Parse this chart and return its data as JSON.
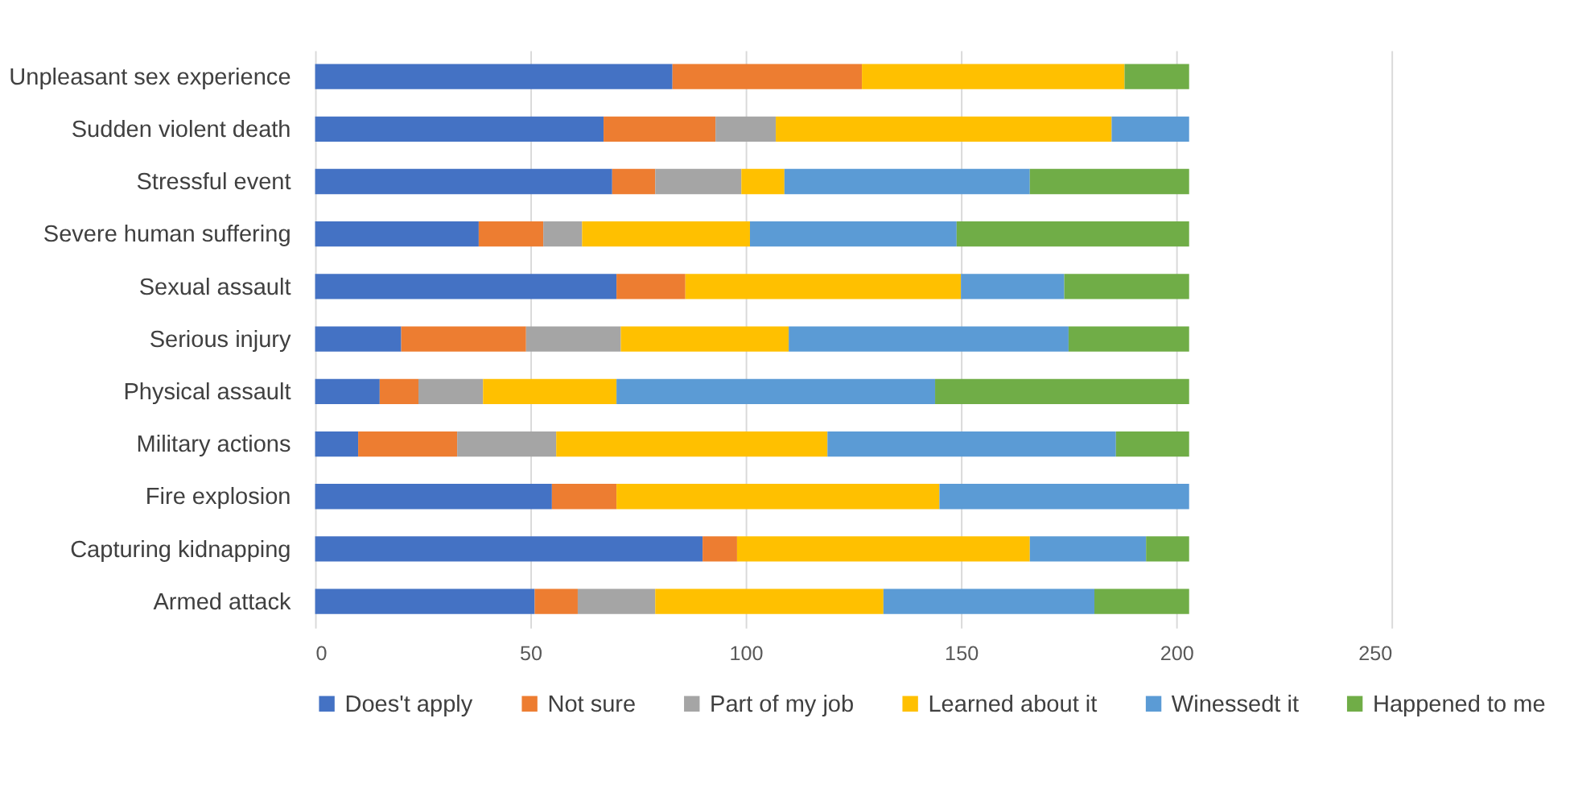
{
  "chart_data": {
    "type": "bar",
    "orientation": "horizontal",
    "stacked": true,
    "categories": [
      "Unpleasant sex experience",
      "Sudden violent death",
      "Stressful event",
      "Severe human suffering",
      "Sexual assault",
      "Serious injury",
      "Physical assault",
      "Military actions",
      "Fire explosion",
      "Capturing kidnapping",
      "Armed attack"
    ],
    "series": [
      {
        "name": "Does't apply",
        "color": "#4472c4",
        "values": [
          83,
          67,
          69,
          38,
          70,
          20,
          15,
          10,
          55,
          90,
          51
        ]
      },
      {
        "name": "Not sure",
        "color": "#ed7d31",
        "values": [
          44,
          26,
          10,
          15,
          16,
          29,
          9,
          23,
          15,
          8,
          10
        ]
      },
      {
        "name": "Part of my job",
        "color": "#a5a5a5",
        "values": [
          0,
          14,
          20,
          9,
          0,
          22,
          15,
          23,
          0,
          0,
          18
        ]
      },
      {
        "name": "Learned about it",
        "color": "#ffc000",
        "values": [
          61,
          78,
          10,
          39,
          64,
          39,
          31,
          63,
          75,
          68,
          53
        ]
      },
      {
        "name": "Winessedt it",
        "color": "#5b9bd5",
        "values": [
          0,
          18,
          57,
          48,
          24,
          65,
          74,
          67,
          58,
          27,
          49
        ]
      },
      {
        "name": "Happened to me",
        "color": "#70ad47",
        "values": [
          15,
          0,
          37,
          54,
          29,
          28,
          59,
          17,
          0,
          10,
          22
        ]
      }
    ],
    "xlim": [
      0,
      250
    ],
    "xticks": [
      0,
      50,
      100,
      150,
      200,
      250
    ],
    "grid": "x",
    "legend": "bottom"
  }
}
